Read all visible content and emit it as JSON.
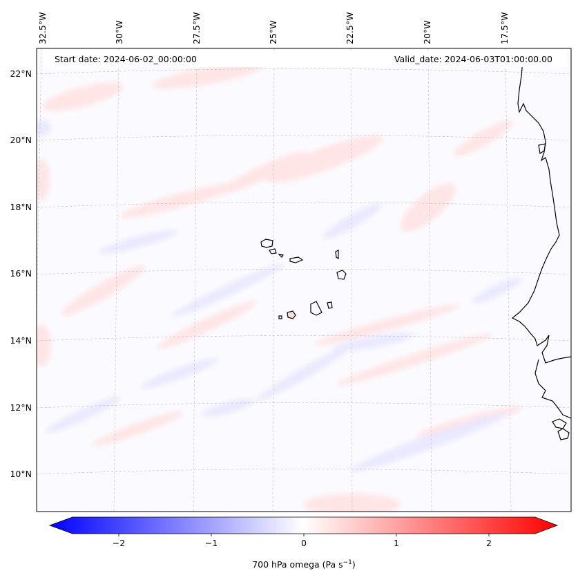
{
  "map": {
    "start_date_text": "Start date: 2024-06-02_00:00:00",
    "valid_date_text": "Valid_date: 2024-06-03T01:00:00.00",
    "lon_labels": [
      "32.5°W",
      "30°W",
      "27.5°W",
      "25°W",
      "22.5°W",
      "20°W",
      "17.5°W"
    ],
    "lat_labels": [
      "22°N",
      "20°N",
      "18°N",
      "16°N",
      "14°N",
      "12°N",
      "10°N"
    ],
    "gridlines": true,
    "coastline_color": "#000000"
  },
  "colorbar": {
    "label": "700 hPa omega (Pa s",
    "label_sup": "−1",
    "label_end": ")",
    "ticks": [
      "−2",
      "−1",
      "0",
      "1",
      "2"
    ],
    "tick_values": [
      -2,
      -1,
      0,
      1,
      2
    ],
    "range": [
      -2.5,
      2.5
    ],
    "colormap": "bwr",
    "color_min": "#0000ff",
    "color_mid": "#ffffff",
    "color_max": "#ff0000",
    "extend": "both"
  }
}
